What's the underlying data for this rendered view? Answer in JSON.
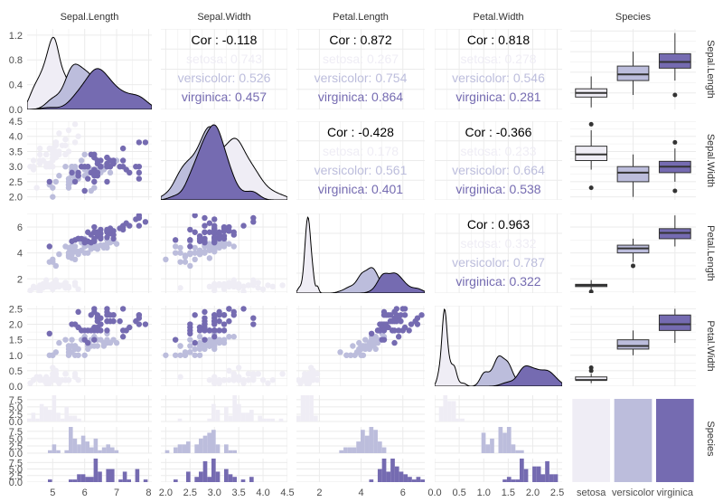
{
  "chart_data": {
    "type": "scatter-matrix",
    "variables": [
      "Sepal.Length",
      "Sepal.Width",
      "Petal.Length",
      "Petal.Width",
      "Species"
    ],
    "groups": [
      "setosa",
      "versicolor",
      "virginica"
    ],
    "colors": {
      "setosa": "#efedf5",
      "versicolor": "#bcbddc",
      "virginica": "#756bb1",
      "grid": "#ebebeb",
      "text": "#4d4d4d"
    },
    "axes": {
      "Sepal.Length": {
        "range": [
          4.2,
          8.1
        ],
        "ticks": [
          5,
          6,
          7,
          8
        ],
        "tick_labels": [
          "5",
          "6",
          "7",
          "8"
        ]
      },
      "Sepal.Width": {
        "range": [
          1.9,
          4.5
        ],
        "ticks": [
          2.0,
          2.5,
          3.0,
          3.5,
          4.0,
          4.5
        ],
        "tick_labels": [
          "2.0",
          "2.5",
          "3.0",
          "3.5",
          "4.0",
          "4.5"
        ]
      },
      "Petal.Length": {
        "range": [
          0.9,
          7.05
        ],
        "ticks": [
          2,
          4,
          6
        ],
        "tick_labels": [
          "2",
          "4",
          "6"
        ]
      },
      "Petal.Width": {
        "range": [
          0.0,
          2.6
        ],
        "ticks": [
          0.0,
          0.5,
          1.0,
          1.5,
          2.0,
          2.5
        ],
        "tick_labels": [
          "0.0",
          "0.5",
          "1.0",
          "1.5",
          "2.0",
          "2.5"
        ]
      }
    },
    "density_axis": {
      "ticks": [
        0.0,
        0.4,
        0.8,
        1.2
      ],
      "tick_labels": [
        "0.0",
        "0.4",
        "0.8",
        "1.2"
      ],
      "range": [
        0,
        1.3
      ]
    },
    "histogram_axis": {
      "ticks": [
        0.0,
        2.5,
        5.0,
        7.5
      ],
      "tick_labels": [
        "0.0",
        "2.5",
        "5.0",
        "7.5"
      ]
    },
    "correlations": [
      {
        "row": "Sepal.Length",
        "col": "Sepal.Width",
        "overall": "Cor : -0.118",
        "groups": [
          "setosa: 0.743",
          "versicolor: 0.526",
          "virginica: 0.457"
        ]
      },
      {
        "row": "Sepal.Length",
        "col": "Petal.Length",
        "overall": "Cor : 0.872",
        "groups": [
          "setosa: 0.267",
          "versicolor: 0.754",
          "virginica: 0.864"
        ]
      },
      {
        "row": "Sepal.Length",
        "col": "Petal.Width",
        "overall": "Cor : 0.818",
        "groups": [
          "setosa: 0.278",
          "versicolor: 0.546",
          "virginica: 0.281"
        ]
      },
      {
        "row": "Sepal.Width",
        "col": "Petal.Length",
        "overall": "Cor : -0.428",
        "groups": [
          "setosa: 0.178",
          "versicolor: 0.561",
          "virginica: 0.401"
        ]
      },
      {
        "row": "Sepal.Width",
        "col": "Petal.Width",
        "overall": "Cor : -0.366",
        "groups": [
          "setosa: 0.233",
          "versicolor: 0.664",
          "virginica: 0.538"
        ]
      },
      {
        "row": "Petal.Length",
        "col": "Petal.Width",
        "overall": "Cor : 0.963",
        "groups": [
          "setosa: 0.332",
          "versicolor: 0.787",
          "virginica: 0.322"
        ]
      }
    ],
    "boxplots": {
      "Sepal.Length": {
        "setosa": {
          "min": 4.3,
          "q1": 4.8,
          "median": 5.0,
          "q3": 5.2,
          "max": 5.8,
          "outliers": []
        },
        "versicolor": {
          "min": 4.9,
          "q1": 5.6,
          "median": 5.9,
          "q3": 6.3,
          "max": 7.0,
          "outliers": []
        },
        "virginica": {
          "min": 5.6,
          "q1": 6.2,
          "median": 6.5,
          "q3": 6.9,
          "max": 7.9,
          "outliers": [
            4.9
          ]
        }
      },
      "Sepal.Width": {
        "setosa": {
          "min": 2.9,
          "q1": 3.2,
          "median": 3.4,
          "q3": 3.675,
          "max": 4.2,
          "outliers": [
            4.4,
            2.3
          ]
        },
        "versicolor": {
          "min": 2.0,
          "q1": 2.5,
          "median": 2.8,
          "q3": 3.0,
          "max": 3.4,
          "outliers": []
        },
        "virginica": {
          "min": 2.5,
          "q1": 2.8,
          "median": 3.0,
          "q3": 3.175,
          "max": 3.6,
          "outliers": [
            3.8,
            2.2
          ]
        }
      },
      "Petal.Length": {
        "setosa": {
          "min": 1.1,
          "q1": 1.4,
          "median": 1.5,
          "q3": 1.575,
          "max": 1.9,
          "outliers": [
            1.0
          ]
        },
        "versicolor": {
          "min": 3.3,
          "q1": 4.0,
          "median": 4.35,
          "q3": 4.6,
          "max": 5.1,
          "outliers": [
            3.0
          ]
        },
        "virginica": {
          "min": 4.5,
          "q1": 5.1,
          "median": 5.55,
          "q3": 5.875,
          "max": 6.9,
          "outliers": []
        }
      },
      "Petal.Width": {
        "setosa": {
          "min": 0.1,
          "q1": 0.2,
          "median": 0.2,
          "q3": 0.3,
          "max": 0.4,
          "outliers": [
            0.5,
            0.6
          ]
        },
        "versicolor": {
          "min": 1.0,
          "q1": 1.2,
          "median": 1.3,
          "q3": 1.5,
          "max": 1.8,
          "outliers": []
        },
        "virginica": {
          "min": 1.4,
          "q1": 1.8,
          "median": 2.0,
          "q3": 2.3,
          "max": 2.5,
          "outliers": []
        }
      }
    },
    "species_counts": {
      "setosa": 50,
      "versicolor": 50,
      "virginica": 50
    },
    "observations": {
      "setosa": [
        [
          5.1,
          3.5,
          1.4,
          0.2
        ],
        [
          4.9,
          3.0,
          1.4,
          0.2
        ],
        [
          4.7,
          3.2,
          1.3,
          0.2
        ],
        [
          4.6,
          3.1,
          1.5,
          0.2
        ],
        [
          5.0,
          3.6,
          1.4,
          0.2
        ],
        [
          5.4,
          3.9,
          1.7,
          0.4
        ],
        [
          4.6,
          3.4,
          1.4,
          0.3
        ],
        [
          5.0,
          3.4,
          1.5,
          0.2
        ],
        [
          4.4,
          2.9,
          1.4,
          0.2
        ],
        [
          4.9,
          3.1,
          1.5,
          0.1
        ],
        [
          5.4,
          3.7,
          1.5,
          0.2
        ],
        [
          4.8,
          3.4,
          1.6,
          0.2
        ],
        [
          4.8,
          3.0,
          1.4,
          0.1
        ],
        [
          4.3,
          3.0,
          1.1,
          0.1
        ],
        [
          5.8,
          4.0,
          1.2,
          0.2
        ],
        [
          5.7,
          4.4,
          1.5,
          0.4
        ],
        [
          5.4,
          3.9,
          1.3,
          0.4
        ],
        [
          5.1,
          3.5,
          1.4,
          0.3
        ],
        [
          5.7,
          3.8,
          1.7,
          0.3
        ],
        [
          5.1,
          3.8,
          1.5,
          0.3
        ],
        [
          5.4,
          3.4,
          1.7,
          0.2
        ],
        [
          5.1,
          3.7,
          1.5,
          0.4
        ],
        [
          4.6,
          3.6,
          1.0,
          0.2
        ],
        [
          5.1,
          3.3,
          1.7,
          0.5
        ],
        [
          4.8,
          3.4,
          1.9,
          0.2
        ],
        [
          5.0,
          3.0,
          1.6,
          0.2
        ],
        [
          5.0,
          3.4,
          1.6,
          0.4
        ],
        [
          5.2,
          3.5,
          1.5,
          0.2
        ],
        [
          5.2,
          3.4,
          1.4,
          0.2
        ],
        [
          4.7,
          3.2,
          1.6,
          0.2
        ],
        [
          4.8,
          3.1,
          1.6,
          0.2
        ],
        [
          5.4,
          3.4,
          1.5,
          0.4
        ],
        [
          5.2,
          4.1,
          1.5,
          0.1
        ],
        [
          5.5,
          4.2,
          1.4,
          0.2
        ],
        [
          4.9,
          3.1,
          1.5,
          0.2
        ],
        [
          5.0,
          3.2,
          1.2,
          0.2
        ],
        [
          5.5,
          3.5,
          1.3,
          0.2
        ],
        [
          4.9,
          3.6,
          1.4,
          0.1
        ],
        [
          4.4,
          3.0,
          1.3,
          0.2
        ],
        [
          5.1,
          3.4,
          1.5,
          0.2
        ],
        [
          5.0,
          3.5,
          1.3,
          0.3
        ],
        [
          4.5,
          2.3,
          1.3,
          0.3
        ],
        [
          4.4,
          3.2,
          1.3,
          0.2
        ],
        [
          5.0,
          3.5,
          1.6,
          0.6
        ],
        [
          5.1,
          3.8,
          1.9,
          0.4
        ],
        [
          4.8,
          3.0,
          1.4,
          0.3
        ],
        [
          5.1,
          3.8,
          1.6,
          0.2
        ],
        [
          4.6,
          3.2,
          1.4,
          0.2
        ],
        [
          5.3,
          3.7,
          1.5,
          0.2
        ],
        [
          5.0,
          3.3,
          1.4,
          0.2
        ]
      ],
      "versicolor": [
        [
          7.0,
          3.2,
          4.7,
          1.4
        ],
        [
          6.4,
          3.2,
          4.5,
          1.5
        ],
        [
          6.9,
          3.1,
          4.9,
          1.5
        ],
        [
          5.5,
          2.3,
          4.0,
          1.3
        ],
        [
          6.5,
          2.8,
          4.6,
          1.5
        ],
        [
          5.7,
          2.8,
          4.5,
          1.3
        ],
        [
          6.3,
          3.3,
          4.7,
          1.6
        ],
        [
          4.9,
          2.4,
          3.3,
          1.0
        ],
        [
          6.6,
          2.9,
          4.6,
          1.3
        ],
        [
          5.2,
          2.7,
          3.9,
          1.4
        ],
        [
          5.0,
          2.0,
          3.5,
          1.0
        ],
        [
          5.9,
          3.0,
          4.2,
          1.5
        ],
        [
          6.0,
          2.2,
          4.0,
          1.0
        ],
        [
          6.1,
          2.9,
          4.7,
          1.4
        ],
        [
          5.6,
          2.9,
          3.6,
          1.3
        ],
        [
          6.7,
          3.1,
          4.4,
          1.4
        ],
        [
          5.6,
          3.0,
          4.5,
          1.5
        ],
        [
          5.8,
          2.7,
          4.1,
          1.0
        ],
        [
          6.2,
          2.2,
          4.5,
          1.5
        ],
        [
          5.6,
          2.5,
          3.9,
          1.1
        ],
        [
          5.9,
          3.2,
          4.8,
          1.8
        ],
        [
          6.1,
          2.8,
          4.0,
          1.3
        ],
        [
          6.3,
          2.5,
          4.9,
          1.5
        ],
        [
          6.1,
          2.8,
          4.7,
          1.2
        ],
        [
          6.4,
          2.9,
          4.3,
          1.3
        ],
        [
          6.6,
          3.0,
          4.4,
          1.4
        ],
        [
          6.8,
          2.8,
          4.8,
          1.4
        ],
        [
          6.7,
          3.0,
          5.0,
          1.7
        ],
        [
          6.0,
          2.9,
          4.5,
          1.5
        ],
        [
          5.7,
          2.6,
          3.5,
          1.0
        ],
        [
          5.5,
          2.4,
          3.8,
          1.1
        ],
        [
          5.5,
          2.4,
          3.7,
          1.0
        ],
        [
          5.8,
          2.7,
          3.9,
          1.2
        ],
        [
          6.0,
          2.7,
          5.1,
          1.6
        ],
        [
          5.4,
          3.0,
          4.5,
          1.5
        ],
        [
          6.0,
          3.4,
          4.5,
          1.6
        ],
        [
          6.7,
          3.1,
          4.7,
          1.5
        ],
        [
          6.3,
          2.3,
          4.4,
          1.3
        ],
        [
          5.6,
          3.0,
          4.1,
          1.3
        ],
        [
          5.5,
          2.5,
          4.0,
          1.3
        ],
        [
          5.5,
          2.6,
          4.4,
          1.2
        ],
        [
          6.1,
          3.0,
          4.6,
          1.4
        ],
        [
          5.8,
          2.6,
          4.0,
          1.2
        ],
        [
          5.0,
          2.3,
          3.3,
          1.0
        ],
        [
          5.6,
          2.7,
          4.2,
          1.3
        ],
        [
          5.7,
          3.0,
          4.2,
          1.2
        ],
        [
          5.7,
          2.9,
          4.2,
          1.3
        ],
        [
          6.2,
          2.9,
          4.3,
          1.3
        ],
        [
          5.1,
          2.5,
          3.0,
          1.1
        ],
        [
          5.7,
          2.8,
          4.1,
          1.3
        ]
      ],
      "virginica": [
        [
          6.3,
          3.3,
          6.0,
          2.5
        ],
        [
          5.8,
          2.7,
          5.1,
          1.9
        ],
        [
          7.1,
          3.0,
          5.9,
          2.1
        ],
        [
          6.3,
          2.9,
          5.6,
          1.8
        ],
        [
          6.5,
          3.0,
          5.8,
          2.2
        ],
        [
          7.6,
          3.0,
          6.6,
          2.1
        ],
        [
          4.9,
          2.5,
          4.5,
          1.7
        ],
        [
          7.3,
          2.9,
          6.3,
          1.8
        ],
        [
          6.7,
          2.5,
          5.8,
          1.8
        ],
        [
          7.2,
          3.6,
          6.1,
          2.5
        ],
        [
          6.5,
          3.2,
          5.1,
          2.0
        ],
        [
          6.4,
          2.7,
          5.3,
          1.9
        ],
        [
          6.8,
          3.0,
          5.5,
          2.1
        ],
        [
          5.7,
          2.5,
          5.0,
          2.0
        ],
        [
          5.8,
          2.8,
          5.1,
          2.4
        ],
        [
          6.4,
          3.2,
          5.3,
          2.3
        ],
        [
          6.5,
          3.0,
          5.5,
          1.8
        ],
        [
          7.7,
          3.8,
          6.7,
          2.2
        ],
        [
          7.7,
          2.6,
          6.9,
          2.3
        ],
        [
          6.0,
          2.2,
          5.0,
          1.5
        ],
        [
          6.9,
          3.2,
          5.7,
          2.3
        ],
        [
          5.6,
          2.8,
          4.9,
          2.0
        ],
        [
          7.7,
          2.8,
          6.7,
          2.0
        ],
        [
          6.3,
          2.7,
          4.9,
          1.8
        ],
        [
          6.7,
          3.3,
          5.7,
          2.1
        ],
        [
          7.2,
          3.2,
          6.0,
          1.8
        ],
        [
          6.2,
          2.8,
          4.8,
          1.8
        ],
        [
          6.1,
          3.0,
          4.9,
          1.8
        ],
        [
          6.4,
          2.8,
          5.6,
          2.1
        ],
        [
          7.2,
          3.0,
          5.8,
          1.6
        ],
        [
          7.4,
          2.8,
          6.1,
          1.9
        ],
        [
          7.9,
          3.8,
          6.4,
          2.0
        ],
        [
          6.4,
          2.8,
          5.6,
          2.2
        ],
        [
          6.3,
          2.8,
          5.1,
          1.5
        ],
        [
          6.1,
          2.6,
          5.6,
          1.4
        ],
        [
          7.7,
          3.0,
          6.1,
          2.3
        ],
        [
          6.3,
          3.4,
          5.6,
          2.4
        ],
        [
          6.4,
          3.1,
          5.5,
          1.8
        ],
        [
          6.0,
          3.0,
          4.8,
          1.8
        ],
        [
          6.9,
          3.1,
          5.4,
          2.1
        ],
        [
          6.7,
          3.1,
          5.6,
          2.4
        ],
        [
          6.9,
          3.1,
          5.1,
          2.3
        ],
        [
          5.8,
          2.7,
          5.1,
          1.9
        ],
        [
          6.8,
          3.2,
          5.9,
          2.3
        ],
        [
          6.7,
          3.3,
          5.7,
          2.5
        ],
        [
          6.7,
          3.0,
          5.2,
          2.3
        ],
        [
          6.3,
          2.5,
          5.0,
          1.9
        ],
        [
          6.5,
          3.0,
          5.2,
          2.0
        ],
        [
          6.2,
          3.4,
          5.4,
          2.3
        ],
        [
          5.9,
          3.0,
          5.1,
          1.8
        ]
      ]
    },
    "species_axis_labels": [
      "setosa",
      "versicolor",
      "virginica"
    ],
    "grid": true
  }
}
